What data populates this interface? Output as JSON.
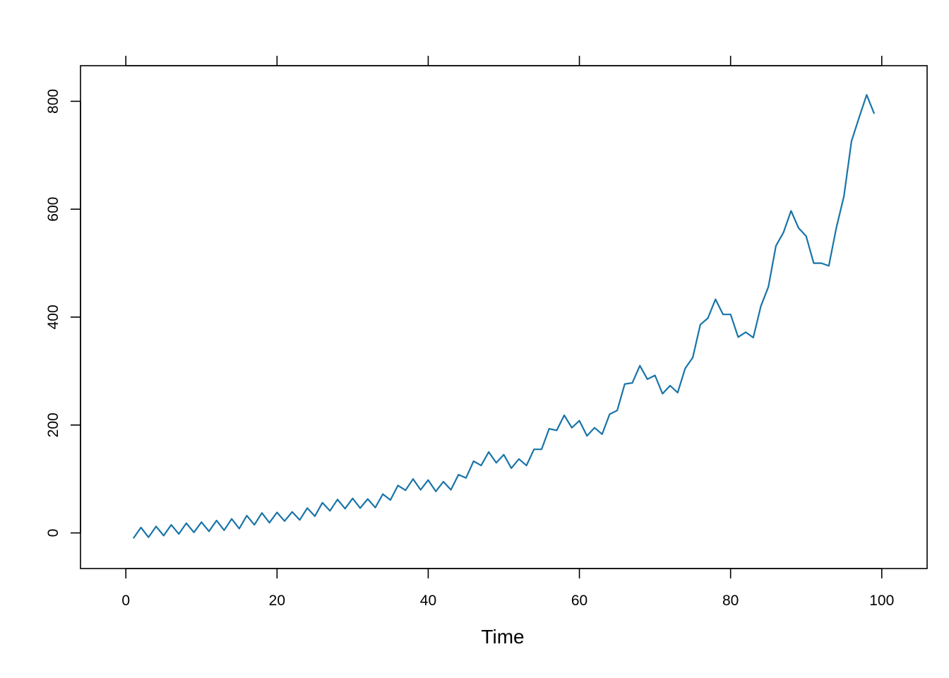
{
  "chart_data": {
    "type": "line",
    "title": "",
    "xlabel": "Time",
    "ylabel": "",
    "xlim": [
      -6,
      106
    ],
    "ylim": [
      -66,
      866
    ],
    "x_ticks": [
      0,
      20,
      40,
      60,
      80,
      100
    ],
    "y_ticks": [
      0,
      200,
      400,
      600,
      800
    ],
    "x_tick_labels": [
      "0",
      "20",
      "40",
      "60",
      "80",
      "100"
    ],
    "y_tick_labels": [
      "0",
      "200",
      "400",
      "600",
      "800"
    ],
    "grid": false,
    "line_color": "#1874a8",
    "series": [
      {
        "x": [
          1,
          2,
          3,
          4,
          5,
          6,
          7,
          8,
          9,
          10,
          11,
          12,
          13,
          14,
          15,
          16,
          17,
          18,
          19,
          20,
          21,
          22,
          23,
          24,
          25,
          26,
          27,
          28,
          29,
          30,
          31,
          32,
          33,
          34,
          35,
          36,
          37,
          38,
          39,
          40,
          41,
          42,
          43,
          44,
          45,
          46,
          47,
          48,
          49,
          50,
          51,
          52,
          53,
          54,
          55,
          56,
          57,
          58,
          59,
          60,
          61,
          62,
          63,
          64,
          65,
          66,
          67,
          68,
          69,
          70,
          71,
          72,
          73,
          74,
          75,
          76,
          77,
          78,
          79,
          80,
          81,
          82,
          83,
          84,
          85,
          86,
          87,
          88,
          89,
          90,
          91,
          92,
          93,
          94,
          95,
          96,
          97,
          98,
          99
        ],
        "values": [
          -10,
          10,
          -8,
          12,
          -5,
          15,
          -2,
          18,
          1,
          20,
          3,
          23,
          5,
          26,
          8,
          32,
          15,
          37,
          19,
          38,
          22,
          39,
          24,
          46,
          31,
          56,
          41,
          62,
          45,
          64,
          46,
          63,
          47,
          72,
          61,
          88,
          79,
          100,
          80,
          98,
          77,
          95,
          80,
          108,
          102,
          133,
          125,
          150,
          130,
          145,
          120,
          137,
          125,
          155,
          155,
          193,
          190,
          218,
          195,
          208,
          180,
          195,
          183,
          220,
          227,
          276,
          278,
          310,
          285,
          292,
          258,
          273,
          260,
          305,
          325,
          386,
          398,
          433,
          405,
          405,
          363,
          372,
          362,
          420,
          456,
          532,
          557,
          597,
          565,
          550,
          500,
          500,
          495,
          566,
          624,
          726,
          770,
          812,
          777
        ]
      }
    ]
  }
}
